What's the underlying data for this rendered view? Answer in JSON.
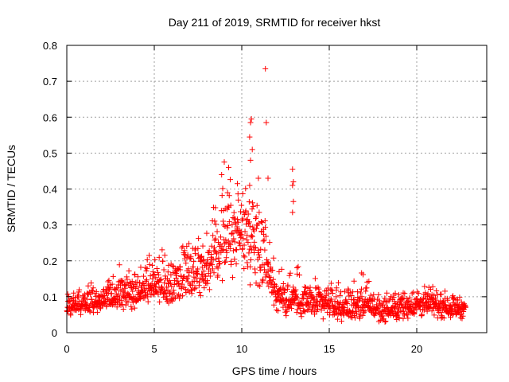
{
  "chart_data": {
    "type": "scatter",
    "title": "Day 211 of 2019, SRMTID for receiver hkst",
    "xlabel": "GPS time / hours",
    "ylabel": "SRMTID / TECUs",
    "xlim": [
      0,
      24
    ],
    "ylim": [
      0,
      0.8
    ],
    "x_ticks": [
      0,
      5,
      10,
      15,
      20
    ],
    "x_tick_labels": [
      "0",
      "5",
      "10",
      "15",
      "20"
    ],
    "y_ticks": [
      0,
      0.1,
      0.2,
      0.3,
      0.4,
      0.5,
      0.6,
      0.7,
      0.8
    ],
    "y_tick_labels": [
      "0",
      "0.1",
      "0.2",
      "0.3",
      "0.4",
      "0.5",
      "0.6",
      "0.7",
      "0.8"
    ],
    "grid": true,
    "marker": "+",
    "marker_color": "#ff0000",
    "series": [
      {
        "name": "SRMTID",
        "x_range": [
          0,
          22.8
        ],
        "envelope": [
          [
            0,
            0.07,
            0.04,
            0.12
          ],
          [
            1,
            0.08,
            0.04,
            0.15
          ],
          [
            2,
            0.09,
            0.05,
            0.16
          ],
          [
            3,
            0.1,
            0.05,
            0.2
          ],
          [
            4,
            0.12,
            0.05,
            0.21
          ],
          [
            5,
            0.13,
            0.07,
            0.27
          ],
          [
            6,
            0.12,
            0.05,
            0.23
          ],
          [
            7,
            0.17,
            0.09,
            0.33
          ],
          [
            8,
            0.18,
            0.08,
            0.3
          ],
          [
            9,
            0.27,
            0.13,
            0.47
          ],
          [
            10,
            0.28,
            0.1,
            0.45
          ],
          [
            11,
            0.27,
            0.1,
            0.44
          ],
          [
            12,
            0.1,
            0.03,
            0.2
          ],
          [
            13,
            0.09,
            0.03,
            0.22
          ],
          [
            14,
            0.08,
            0.03,
            0.16
          ],
          [
            15,
            0.08,
            0.03,
            0.16
          ],
          [
            16,
            0.07,
            0.02,
            0.15
          ],
          [
            17,
            0.08,
            0.03,
            0.19
          ],
          [
            18,
            0.06,
            0.02,
            0.12
          ],
          [
            19,
            0.07,
            0.02,
            0.13
          ],
          [
            20,
            0.08,
            0.03,
            0.14
          ],
          [
            21,
            0.08,
            0.03,
            0.14
          ],
          [
            22,
            0.07,
            0.03,
            0.12
          ],
          [
            22.8,
            0.07,
            0.03,
            0.1
          ]
        ],
        "outliers": [
          [
            11.35,
            0.735
          ],
          [
            10.55,
            0.595
          ],
          [
            10.5,
            0.585
          ],
          [
            11.4,
            0.585
          ],
          [
            10.45,
            0.545
          ],
          [
            10.6,
            0.51
          ],
          [
            10.5,
            0.48
          ],
          [
            12.9,
            0.455
          ],
          [
            12.95,
            0.42
          ],
          [
            12.9,
            0.41
          ],
          [
            12.95,
            0.365
          ],
          [
            12.9,
            0.335
          ],
          [
            9.0,
            0.475
          ],
          [
            9.25,
            0.46
          ],
          [
            8.85,
            0.44
          ],
          [
            10.95,
            0.43
          ],
          [
            9.75,
            0.415
          ],
          [
            10.45,
            0.41
          ],
          [
            11.5,
            0.43
          ]
        ]
      }
    ]
  }
}
